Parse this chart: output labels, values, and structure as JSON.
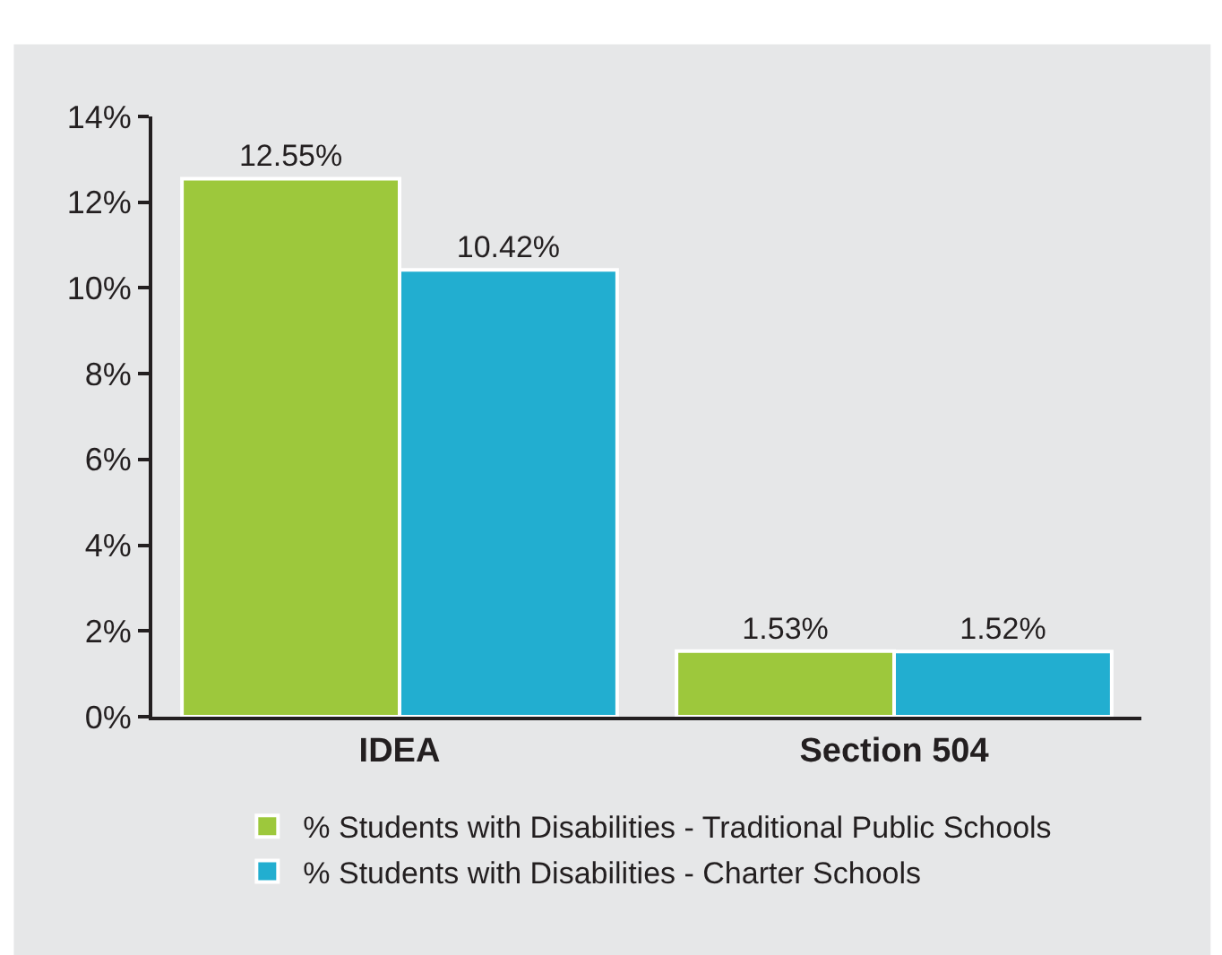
{
  "chart_data": {
    "type": "bar",
    "categories": [
      "IDEA",
      "Section 504"
    ],
    "series": [
      {
        "name": "% Students with Disabilities - Traditional Public Schools",
        "color": "#9dc83c",
        "values": [
          12.55,
          1.53
        ],
        "value_labels": [
          "12.55%",
          "1.53%"
        ]
      },
      {
        "name": "% Students with Disabilities - Charter Schools",
        "color": "#22aed0",
        "values": [
          10.42,
          1.52
        ],
        "value_labels": [
          "10.42%",
          "1.52%"
        ]
      }
    ],
    "ylim": [
      0,
      14
    ],
    "yticks": [
      {
        "value": 0,
        "label": "0%"
      },
      {
        "value": 2,
        "label": "2%"
      },
      {
        "value": 4,
        "label": "4%"
      },
      {
        "value": 6,
        "label": "6%"
      },
      {
        "value": 8,
        "label": "8%"
      },
      {
        "value": 10,
        "label": "10%"
      },
      {
        "value": 12,
        "label": "12%"
      },
      {
        "value": 14,
        "label": "14%"
      }
    ],
    "grid": false,
    "legend": "bottom"
  }
}
